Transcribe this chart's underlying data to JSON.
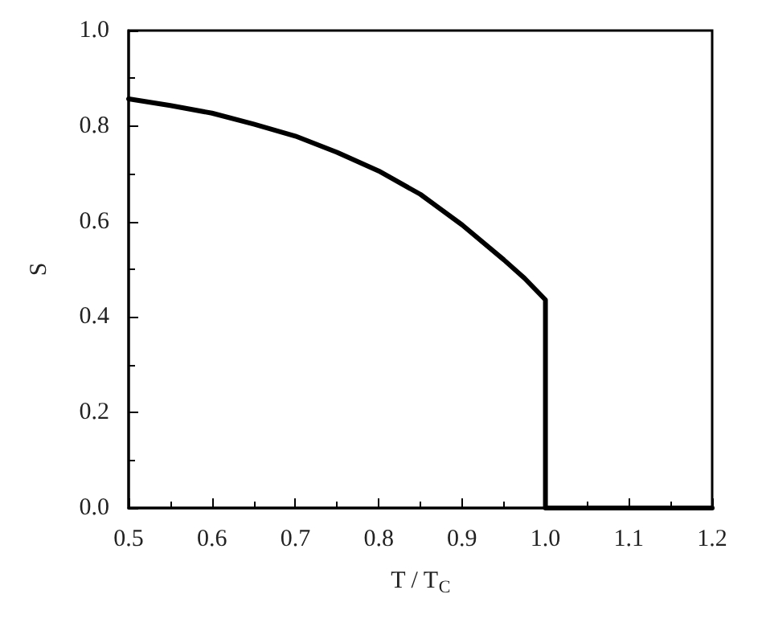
{
  "chart_data": {
    "type": "line",
    "xlabel": "T / T$_{C}$",
    "ylabel": "S",
    "series": [
      {
        "color": "#000000",
        "x": [
          0.5,
          0.55,
          0.6,
          0.65,
          0.7,
          0.75,
          0.8,
          0.85,
          0.9,
          0.95,
          0.975,
          1.0,
          1.0,
          1.2
        ],
        "values": [
          0.857,
          0.843,
          0.827,
          0.804,
          0.779,
          0.745,
          0.706,
          0.657,
          0.593,
          0.52,
          0.481,
          0.436,
          0,
          0
        ]
      }
    ],
    "xlim": [
      0.5,
      1.2
    ],
    "xticks": [
      0.5,
      0.6,
      0.7,
      0.8,
      0.9,
      {
        "value": 1,
        "label": "1.0"
      },
      1.1,
      1.2
    ],
    "ylim": [
      0,
      1
    ],
    "yticks": [
      {
        "value": 0,
        "label": "0.0"
      },
      0.2,
      0.4,
      0.6,
      0.8,
      {
        "value": 1,
        "label": "1.0"
      }
    ],
    "grid": false,
    "marker": "none",
    "line_style": "solid"
  }
}
